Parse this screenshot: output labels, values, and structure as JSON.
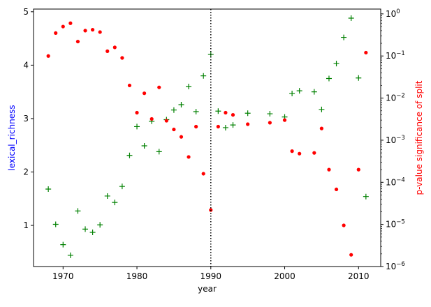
{
  "chart_data": {
    "type": "scatter",
    "title": "",
    "xlabel": "year",
    "ylabel_left": "lexical_richness",
    "ylabel_right": "p-value significance of split",
    "xlim": [
      1966,
      2013
    ],
    "ylim_left": [
      0.23,
      5.05
    ],
    "ylim_right": [
      1e-06,
      1.3
    ],
    "right_axis_scale": "log",
    "grid": false,
    "x_ticks": [
      1970,
      1980,
      1990,
      2000,
      2010
    ],
    "y_left_ticks": [
      1,
      2,
      3,
      4,
      5
    ],
    "y_right_ticks": [
      1e-06,
      1e-05,
      0.0001,
      0.001,
      0.01,
      0.1,
      1
    ],
    "y_right_tick_labels": [
      {
        "base": "10",
        "exp": "−6"
      },
      {
        "base": "10",
        "exp": "−5"
      },
      {
        "base": "10",
        "exp": "−4"
      },
      {
        "base": "10",
        "exp": "−3"
      },
      {
        "base": "10",
        "exp": "−2"
      },
      {
        "base": "10",
        "exp": "−1"
      },
      {
        "base": "10",
        "exp": "0"
      }
    ],
    "vertical_line_x": 1990,
    "colors": {
      "lexical_richness": "#008000",
      "p_value": "#ff0000",
      "left_label": "#0000ff",
      "right_label": "#ff0000",
      "vline": "#000000"
    },
    "series": [
      {
        "axis": "left",
        "marker": "plus",
        "color": "#008000",
        "x": [
          1968,
          1969,
          1970,
          1971,
          1972,
          1973,
          1974,
          1975,
          1976,
          1977,
          1978,
          1979,
          1980,
          1981,
          1982,
          1983,
          1984,
          1985,
          1986,
          1987,
          1988,
          1989,
          1990,
          1991,
          1992,
          1993,
          1995,
          1998,
          2000,
          2001,
          2002,
          2004,
          2005,
          2006,
          2007,
          2008,
          2009,
          2010,
          2011
        ],
        "y": [
          1.68,
          1.02,
          0.64,
          0.44,
          1.27,
          0.93,
          0.87,
          1.01,
          1.55,
          1.43,
          1.73,
          2.31,
          2.85,
          2.49,
          2.95,
          2.38,
          2.98,
          3.16,
          3.26,
          3.6,
          3.13,
          3.8,
          4.2,
          3.14,
          2.83,
          2.88,
          3.1,
          3.09,
          3.03,
          3.47,
          3.52,
          3.5,
          3.17,
          3.75,
          4.03,
          4.52,
          4.88,
          3.76,
          1.54
        ]
      },
      {
        "axis": "right",
        "marker": "dot",
        "color": "#ff0000",
        "x": [
          1968,
          1969,
          1970,
          1971,
          1972,
          1973,
          1974,
          1975,
          1976,
          1977,
          1978,
          1979,
          1980,
          1981,
          1982,
          1983,
          1984,
          1985,
          1986,
          1987,
          1988,
          1989,
          1990,
          1991,
          1992,
          1993,
          1995,
          1998,
          2000,
          2001,
          2002,
          2004,
          2005,
          2006,
          2007,
          2008,
          2009,
          2010,
          2011
        ],
        "y": [
          0.1,
          0.35,
          0.5,
          0.6,
          0.22,
          0.4,
          0.42,
          0.37,
          0.13,
          0.16,
          0.09,
          0.02,
          0.0045,
          0.013,
          0.0032,
          0.018,
          0.0029,
          0.0018,
          0.0012,
          0.0004,
          0.0021,
          0.00016,
          2.2e-05,
          0.0021,
          0.0045,
          0.004,
          0.0024,
          0.0026,
          0.003,
          0.00055,
          0.00048,
          0.0005,
          0.0019,
          0.0002,
          6.8e-05,
          9.5e-06,
          1.9e-06,
          0.0002,
          0.12
        ]
      }
    ]
  }
}
